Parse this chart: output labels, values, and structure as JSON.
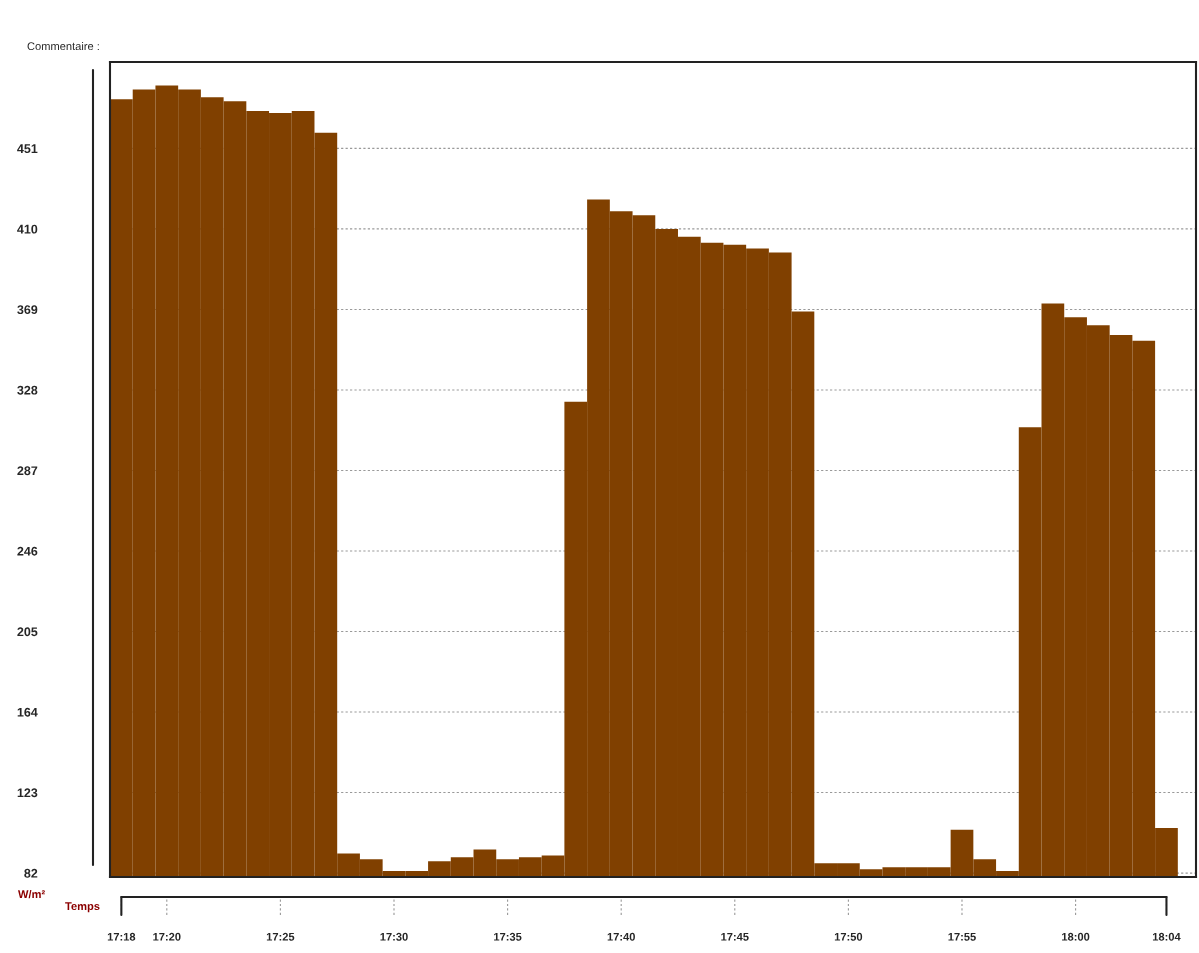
{
  "chart_data": {
    "type": "bar",
    "xlabel": "Temps",
    "ylabel": "W/m²",
    "annotations": [
      "Commentaire :"
    ],
    "categories": [
      "17:18",
      null,
      "17:20",
      null,
      null,
      null,
      null,
      "17:25",
      null,
      null,
      null,
      null,
      "17:30",
      null,
      null,
      null,
      null,
      "17:35",
      null,
      null,
      null,
      null,
      "17:40",
      null,
      null,
      null,
      null,
      "17:45",
      null,
      null,
      null,
      null,
      "17:50",
      null,
      null,
      null,
      null,
      "17:55",
      null,
      null,
      null,
      null,
      "18:00",
      null,
      null,
      null,
      "18:04"
    ],
    "values": [
      476,
      481,
      483,
      481,
      477,
      475,
      470,
      469,
      470,
      459,
      92,
      89,
      83,
      83,
      88,
      90,
      94,
      89,
      90,
      91,
      322,
      425,
      419,
      417,
      410,
      406,
      403,
      402,
      400,
      398,
      368,
      87,
      87,
      84,
      85,
      85,
      85,
      104,
      89,
      83,
      309,
      372,
      365,
      361,
      356,
      353,
      105
    ],
    "color": "#804000",
    "ylim": [
      80,
      495
    ],
    "yticks": [
      82,
      123,
      164,
      205,
      246,
      287,
      328,
      369,
      410,
      451
    ],
    "grid": "y",
    "legend": false
  }
}
